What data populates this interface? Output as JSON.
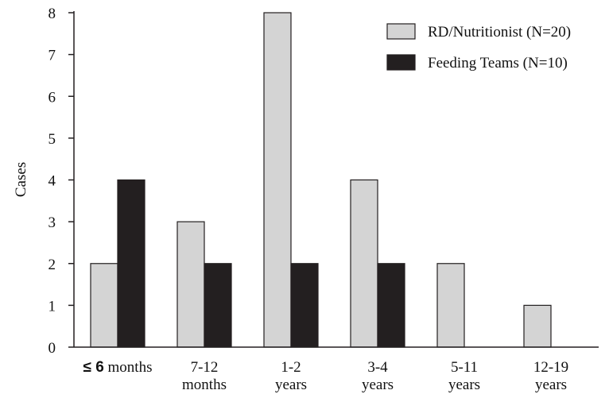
{
  "chart_data": {
    "type": "bar",
    "title": "",
    "xlabel": "",
    "ylabel": "Cases",
    "ylim": [
      0,
      8
    ],
    "yticks": [
      0,
      1,
      2,
      3,
      4,
      5,
      6,
      7,
      8
    ],
    "categories": [
      [
        "≤ 6 months"
      ],
      [
        "7-12",
        "months"
      ],
      [
        "1-2",
        "years"
      ],
      [
        "3-4",
        "years"
      ],
      [
        "5-11",
        "years"
      ],
      [
        "12-19",
        "years"
      ]
    ],
    "series": [
      {
        "name": "RD/Nutritionist (N=20)",
        "color": "#d4d4d4",
        "values": [
          2,
          3,
          8,
          4,
          2,
          1
        ]
      },
      {
        "name": "Feeding Teams (N=10)",
        "color": "#231f20",
        "values": [
          4,
          2,
          2,
          2,
          0,
          0
        ]
      }
    ],
    "grid": false,
    "legend_position": "top-right"
  }
}
